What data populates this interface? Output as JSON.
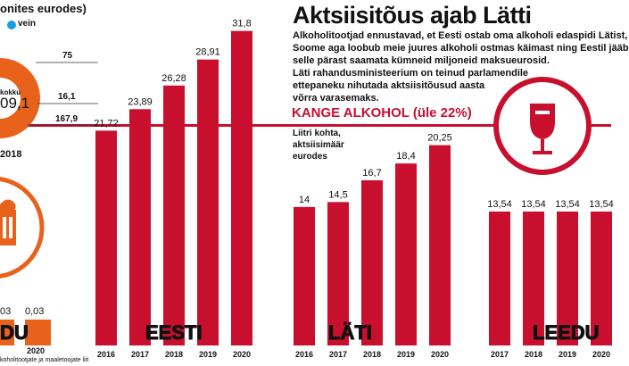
{
  "title": "Aktsiisitõus ajab Lätti",
  "body_lines": [
    "Alkoholitootjad ennustavad, et Eesti ostab oma alkoholi edaspidi Lätist,",
    "Soome aga loobub meie juures alkoholi ostmas käimast ning Eestil jääb",
    "selle pärast saamata kümneid miljoneid maksueurosid.",
    "Läti rahandusministeerium on teinud parlamendile",
    "ettepaneku nihutada aktsiisitõusud aasta",
    "võrra varasemaks."
  ],
  "left_panel": {
    "header": "onites eurodes)",
    "legend_label": "vein",
    "donut_center_top": "kokku",
    "donut_center_value": "09,1",
    "donut_values": [
      "75",
      "16,1",
      "167,9"
    ],
    "donut_year": "2018",
    "bottom_values": [
      "03",
      "0,03"
    ],
    "bottom_label": "DU",
    "bottom_years": [
      "2020"
    ],
    "footnote": "koholitootjate ja maaletoojate liit"
  },
  "section_label": "KANGE ALKOHOL (üle 22%)",
  "unit_note": [
    "Liitri kohta,",
    "aktsiisimäär",
    "eurodes"
  ],
  "colors": {
    "bar": "#c8102e",
    "accent": "#e8621c",
    "legend_dot": "#1a9de0",
    "line": "#c8102e"
  },
  "icons": [
    "wine-glass-icon",
    "beer-mug-icon"
  ],
  "chart_data": [
    {
      "type": "bar",
      "title": "EESTI",
      "categories": [
        "2016",
        "2017",
        "2018",
        "2019",
        "2020"
      ],
      "values": [
        21.72,
        23.89,
        26.28,
        28.91,
        31.8
      ],
      "labels": [
        "21,72",
        "23,89",
        "26,28",
        "28,91",
        "31,8"
      ]
    },
    {
      "type": "bar",
      "title": "LÄTI",
      "categories": [
        "2016",
        "2017",
        "2018",
        "2019",
        "2020"
      ],
      "values": [
        14,
        14.5,
        16.7,
        18.4,
        20.25
      ],
      "labels": [
        "14",
        "14,5",
        "16,7",
        "18,4",
        "20,25"
      ]
    },
    {
      "type": "bar",
      "title": "LEEDU",
      "categories": [
        "2017",
        "2018",
        "2019",
        "2020"
      ],
      "values": [
        13.54,
        13.54,
        13.54,
        13.54
      ],
      "labels": [
        "13,54",
        "13,54",
        "13,54",
        "13,54"
      ]
    }
  ]
}
